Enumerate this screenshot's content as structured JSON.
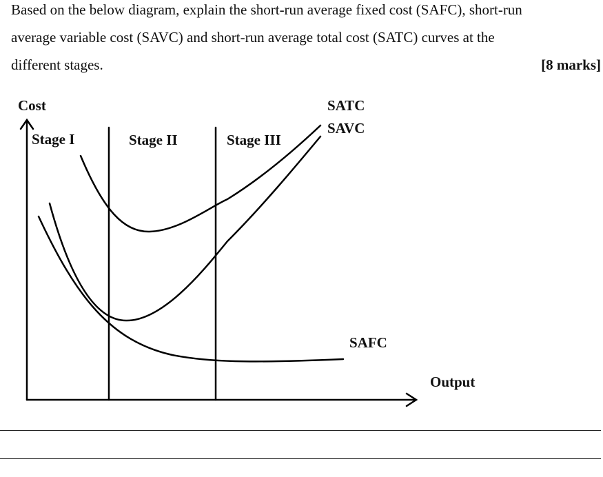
{
  "question": {
    "line1": "Based on the below diagram, explain the short-run average fixed cost (SAFC), short-run",
    "line2": "average variable cost (SAVC) and short-run average total cost (SATC) curves at the",
    "line3": "different stages.",
    "marks": "[8 marks]"
  },
  "diagram": {
    "y_axis_label": "Cost",
    "x_axis_label": "Output",
    "stages": [
      "Stage I",
      "Stage II",
      "Stage III"
    ],
    "curve_labels": {
      "satc": "SATC",
      "savc": "SAVC",
      "safc": "SAFC"
    },
    "stroke_color": "#000000"
  },
  "answer_lines": 2
}
